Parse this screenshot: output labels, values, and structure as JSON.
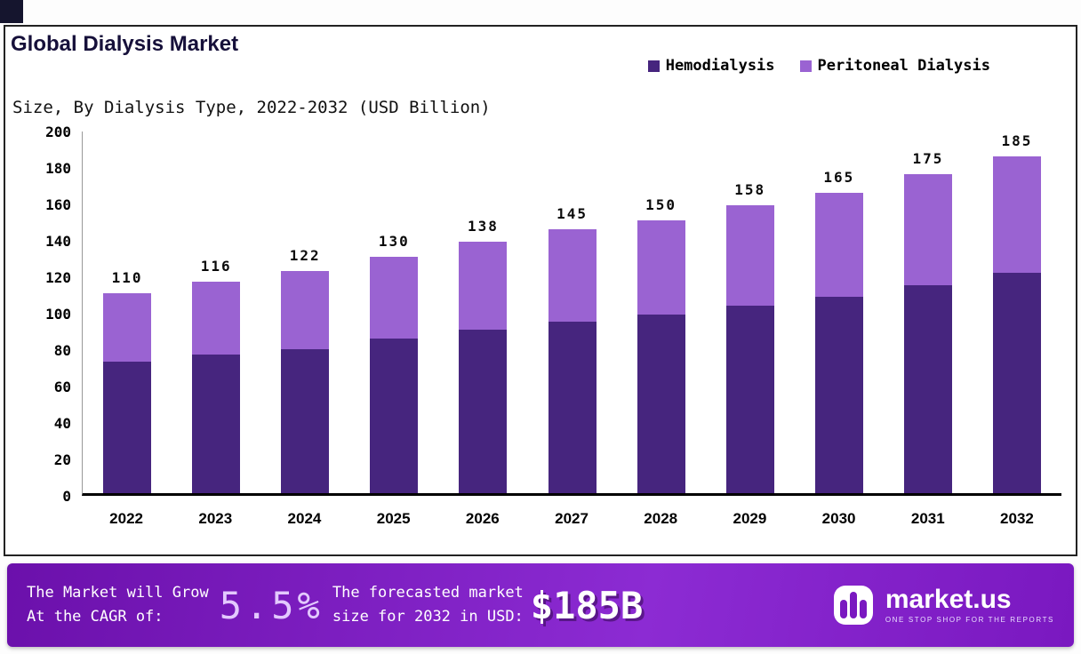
{
  "header": {
    "title": "Global Dialysis Market",
    "subtitle": "Size, By Dialysis Type, 2022-2032 (USD Billion)"
  },
  "legend": [
    {
      "label": "Hemodialysis",
      "color": "#46257e"
    },
    {
      "label": "Peritoneal Dialysis",
      "color": "#9a63d2"
    }
  ],
  "chart_data": {
    "type": "bar",
    "stacked": true,
    "title": "Global Dialysis Market Size, By Dialysis Type, 2022-2032 (USD Billion)",
    "categories": [
      "2022",
      "2023",
      "2024",
      "2025",
      "2026",
      "2027",
      "2028",
      "2029",
      "2030",
      "2031",
      "2032"
    ],
    "series": [
      {
        "name": "Hemodialysis",
        "color": "#46257e",
        "values": [
          72,
          76,
          79,
          85,
          90,
          94,
          98,
          103,
          108,
          114,
          121
        ]
      },
      {
        "name": "Peritoneal Dialysis",
        "color": "#9a63d2",
        "values": [
          38,
          40,
          43,
          45,
          48,
          51,
          52,
          55,
          57,
          61,
          64
        ]
      }
    ],
    "totals": [
      110,
      116,
      122,
      130,
      138,
      145,
      150,
      158,
      165,
      175,
      185
    ],
    "xlabel": "",
    "ylabel": "",
    "ylim": [
      0,
      200
    ],
    "ytick_step": 20,
    "grid": false,
    "legend_position": "top-right",
    "value_labels": "total above each bar"
  },
  "footer": {
    "cagr_line1": "The Market will Grow",
    "cagr_line2": "At the CAGR of:",
    "cagr_value": "5.5%",
    "forecast_line1": "The forecasted market",
    "forecast_line2": "size for 2032 in USD:",
    "forecast_value": "$185B",
    "brand": {
      "name": "market.us",
      "tagline": "ONE STOP SHOP FOR THE REPORTS"
    }
  },
  "colors": {
    "hemodialysis": "#46257e",
    "peritoneal": "#9a63d2",
    "footer_gradient_start": "#6b10ab",
    "footer_gradient_end": "#7a18c0",
    "axis": "#000000",
    "corner_accent": "#15152e"
  }
}
